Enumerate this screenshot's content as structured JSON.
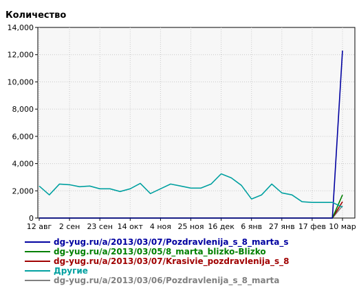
{
  "chart_data": {
    "type": "line",
    "title": "",
    "ylabel": "Количество",
    "xlabel": "",
    "ylim": [
      0,
      14000
    ],
    "yticks": [
      0,
      2000,
      4000,
      6000,
      8000,
      10000,
      12000,
      14000
    ],
    "ytick_labels": [
      "0",
      "2,000",
      "4,000",
      "6,000",
      "8,000",
      "10,000",
      "12,000",
      "14,000"
    ],
    "x_dates": [
      "2012-08-12",
      "2012-08-19",
      "2012-08-26",
      "2012-09-02",
      "2012-09-09",
      "2012-09-16",
      "2012-09-23",
      "2012-09-30",
      "2012-10-07",
      "2012-10-14",
      "2012-10-21",
      "2012-10-28",
      "2012-11-04",
      "2012-11-11",
      "2012-11-18",
      "2012-11-25",
      "2012-12-02",
      "2012-12-09",
      "2012-12-16",
      "2012-12-23",
      "2012-12-30",
      "2013-01-06",
      "2013-01-13",
      "2013-01-20",
      "2013-01-27",
      "2013-02-03",
      "2013-02-10",
      "2013-02-17",
      "2013-02-24",
      "2013-03-03",
      "2013-03-10"
    ],
    "xticks": [
      {
        "date": "2012-08-12",
        "label": "12 авг"
      },
      {
        "date": "2012-09-02",
        "label": "2 сен"
      },
      {
        "date": "2012-09-23",
        "label": "23 сен"
      },
      {
        "date": "2012-10-14",
        "label": "14 окт"
      },
      {
        "date": "2012-11-04",
        "label": "4 ноя"
      },
      {
        "date": "2012-11-25",
        "label": "25 ноя"
      },
      {
        "date": "2012-12-16",
        "label": "16 дек"
      },
      {
        "date": "2013-01-06",
        "label": "6 янв"
      },
      {
        "date": "2013-01-27",
        "label": "27 янв"
      },
      {
        "date": "2013-02-17",
        "label": "17 фев"
      },
      {
        "date": "2013-03-10",
        "label": "10 мар"
      }
    ],
    "grid": true,
    "legend_position": "bottom",
    "series": [
      {
        "name": "dg-yug.ru/a/2013/03/07/Pozdravlenija_s_8_marta_s",
        "color": "#0000a0",
        "values": [
          0,
          0,
          0,
          0,
          0,
          0,
          0,
          0,
          0,
          0,
          0,
          0,
          0,
          0,
          0,
          0,
          0,
          0,
          0,
          0,
          0,
          0,
          0,
          0,
          0,
          0,
          0,
          0,
          0,
          0,
          12300
        ]
      },
      {
        "name": "dg-yug.ru/a/2013/03/05/8_marta_blizko-Blizko",
        "color": "#008000",
        "values": [
          0,
          0,
          0,
          0,
          0,
          0,
          0,
          0,
          0,
          0,
          0,
          0,
          0,
          0,
          0,
          0,
          0,
          0,
          0,
          0,
          0,
          0,
          0,
          0,
          0,
          0,
          0,
          0,
          0,
          0,
          1700
        ]
      },
      {
        "name": "dg-yug.ru/a/2013/03/07/Krasivie_pozdravlenija_s_8",
        "color": "#a00000",
        "values": [
          0,
          0,
          0,
          0,
          0,
          0,
          0,
          0,
          0,
          0,
          0,
          0,
          0,
          0,
          0,
          0,
          0,
          0,
          0,
          0,
          0,
          0,
          0,
          0,
          0,
          0,
          0,
          0,
          0,
          0,
          1200
        ]
      },
      {
        "name": "Другие",
        "color": "#00a0a0",
        "values": [
          2350,
          1700,
          2500,
          2450,
          2300,
          2350,
          2150,
          2150,
          1950,
          2150,
          2550,
          1800,
          2150,
          2500,
          2350,
          2200,
          2200,
          2500,
          3250,
          2950,
          2400,
          1400,
          1700,
          2500,
          1850,
          1700,
          1200,
          1150,
          1150,
          1150,
          800
        ]
      },
      {
        "name": "dg-yug.ru/a/2013/03/06/Pozdravlenija_s_8_marta",
        "color": "#808080",
        "values": [
          0,
          0,
          0,
          0,
          0,
          0,
          0,
          0,
          0,
          0,
          0,
          0,
          0,
          0,
          0,
          0,
          0,
          0,
          0,
          0,
          0,
          0,
          0,
          0,
          0,
          0,
          0,
          0,
          0,
          0,
          900
        ]
      }
    ]
  }
}
